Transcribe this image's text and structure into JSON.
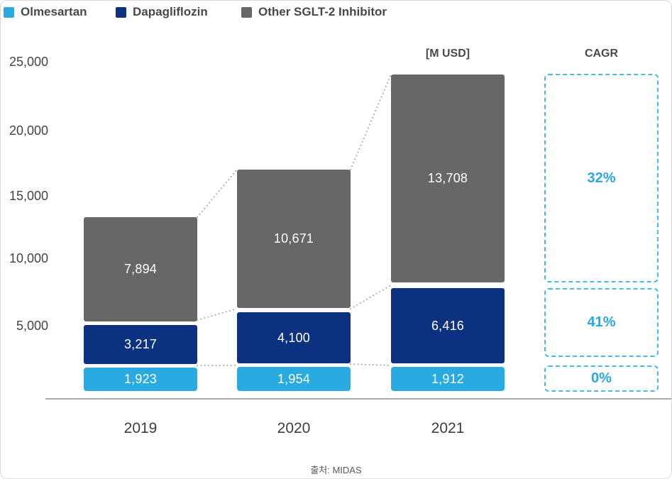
{
  "legend": [
    {
      "label": "Olmesartan",
      "color": "#29ABE2"
    },
    {
      "label": "Dapagliflozin",
      "color": "#0C3181"
    },
    {
      "label": "Other SGLT-2 Inhibitor",
      "color": "#676767"
    }
  ],
  "header": {
    "unit_label": "[M USD]",
    "cagr_label": "CAGR"
  },
  "chart_data": {
    "type": "bar",
    "subtype": "stacked-bar-with-cagr",
    "title": "",
    "unit": "[M USD]",
    "categories": [
      "2019",
      "2020",
      "2021"
    ],
    "series": [
      {
        "name": "Olmesartan",
        "color": "#29ABE2",
        "values": [
          1923,
          1954,
          1912
        ],
        "labels": [
          "1,923",
          "1,954",
          "1,912"
        ]
      },
      {
        "name": "Dapagliflozin",
        "color": "#0C3181",
        "values": [
          3217,
          4100,
          6416
        ],
        "labels": [
          "3,217",
          "4,100",
          "6,416"
        ]
      },
      {
        "name": "Other SGLT-2 Inhibitor",
        "color": "#676767",
        "values": [
          7894,
          10671,
          13708
        ],
        "labels": [
          "7,894",
          "10,671",
          "13,708"
        ]
      }
    ],
    "yticks": [
      "25,000",
      "20,000",
      "15,000",
      "10,000",
      "5,000"
    ],
    "ylim": [
      0,
      25000
    ],
    "grid": false,
    "legend_position": "top-left",
    "cagr": {
      "header": "CAGR",
      "items": [
        {
          "series": "Other SGLT-2 Inhibitor",
          "label": "32%"
        },
        {
          "series": "Dapagliflozin",
          "label": "41%"
        },
        {
          "series": "Olmesartan",
          "label": "0%"
        }
      ]
    }
  },
  "colors": {
    "light_blue": "#29ABE2",
    "navy": "#0C3181",
    "gray": "#676767",
    "cagr_text": "#2AA7E2",
    "cagr_border": "#45B9EE",
    "axis_line": "#ABABAB"
  },
  "source": "출처: MIDAS"
}
